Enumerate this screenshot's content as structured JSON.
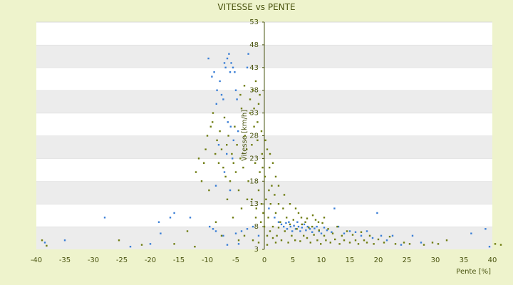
{
  "chart_data": {
    "type": "scatter",
    "title": "VITESSE vs PENTE",
    "xlabel": "Pente [%]",
    "ylabel": "Vitesse [km/h]",
    "xlim": [
      -40,
      40
    ],
    "ylim": [
      3,
      53
    ],
    "xticks": [
      -40,
      -35,
      -30,
      -25,
      -20,
      -15,
      -10,
      -5,
      0,
      5,
      10,
      15,
      20,
      25,
      30,
      35,
      40
    ],
    "yticks": [
      3,
      8,
      13,
      18,
      23,
      28,
      33,
      38,
      43,
      48,
      53
    ],
    "grid": "horizontal alternating bands",
    "legend": "none",
    "series": [
      {
        "color": "#3b7fd6",
        "points": [
          [
            -9.8,
            45
          ],
          [
            -9.2,
            41
          ],
          [
            -8.8,
            42
          ],
          [
            -8.3,
            38
          ],
          [
            -7.8,
            40
          ],
          [
            -7.5,
            37
          ],
          [
            -7.0,
            44
          ],
          [
            -6.8,
            43
          ],
          [
            -6.5,
            45
          ],
          [
            -6.2,
            46
          ],
          [
            -6.0,
            42
          ],
          [
            -5.8,
            44
          ],
          [
            -5.5,
            43
          ],
          [
            -5.2,
            42
          ],
          [
            -5.0,
            38
          ],
          [
            -4.8,
            36
          ],
          [
            -2.8,
            46
          ],
          [
            -3.0,
            43
          ],
          [
            -8.4,
            35
          ],
          [
            -7.2,
            36
          ],
          [
            -6.4,
            31
          ],
          [
            -5.9,
            30
          ],
          [
            -4.6,
            29
          ],
          [
            -5.4,
            27
          ],
          [
            -8.0,
            26
          ],
          [
            -6.6,
            24
          ],
          [
            -5.6,
            23
          ],
          [
            -7.0,
            20
          ],
          [
            -8.5,
            17
          ],
          [
            -6.0,
            16
          ],
          [
            -9.6,
            8
          ],
          [
            -9.0,
            7.5
          ],
          [
            -8.5,
            7
          ],
          [
            -7.2,
            6
          ],
          [
            -5.0,
            6.5
          ],
          [
            -4.0,
            7
          ],
          [
            -3.0,
            7.5
          ],
          [
            -2.0,
            8
          ],
          [
            -1.0,
            6
          ],
          [
            -6.5,
            4
          ],
          [
            -4.5,
            4.2
          ],
          [
            -28.0,
            10
          ],
          [
            -23.5,
            3.6
          ],
          [
            -20.0,
            4.2
          ],
          [
            -18.5,
            9
          ],
          [
            -18.2,
            6.5
          ],
          [
            -16.5,
            10
          ],
          [
            -15.8,
            11
          ],
          [
            -13.0,
            10
          ],
          [
            -35.0,
            5
          ],
          [
            -38.5,
            4.5
          ],
          [
            0.8,
            12
          ],
          [
            1.8,
            10
          ],
          [
            2.5,
            9
          ],
          [
            3.0,
            8.5
          ],
          [
            3.4,
            8
          ],
          [
            3.8,
            8.8
          ],
          [
            4.0,
            7.5
          ],
          [
            4.3,
            9
          ],
          [
            4.6,
            8
          ],
          [
            4.9,
            7
          ],
          [
            5.2,
            8.2
          ],
          [
            5.5,
            7.5
          ],
          [
            5.8,
            9
          ],
          [
            6.0,
            8
          ],
          [
            6.3,
            7
          ],
          [
            6.6,
            7.8
          ],
          [
            7.0,
            8.5
          ],
          [
            7.3,
            7.2
          ],
          [
            7.6,
            8
          ],
          [
            8.0,
            7.5
          ],
          [
            8.4,
            6.8
          ],
          [
            8.8,
            7.6
          ],
          [
            9.2,
            8
          ],
          [
            9.6,
            7
          ],
          [
            10.0,
            6.5
          ],
          [
            10.5,
            7.8
          ],
          [
            11.0,
            7.2
          ],
          [
            11.8,
            6.8
          ],
          [
            12.3,
            12
          ],
          [
            13.0,
            8
          ],
          [
            14.0,
            6.5
          ],
          [
            15.0,
            7
          ],
          [
            16.0,
            6.8
          ],
          [
            17.0,
            6
          ],
          [
            18.0,
            7
          ],
          [
            19.0,
            5.5
          ],
          [
            19.8,
            11
          ],
          [
            20.5,
            6
          ],
          [
            21.5,
            5
          ],
          [
            22.5,
            6
          ],
          [
            24.0,
            4
          ],
          [
            26.0,
            6
          ],
          [
            27.5,
            4.5
          ],
          [
            36.3,
            6.5
          ],
          [
            38.8,
            7.5
          ],
          [
            39.5,
            3.6
          ]
        ]
      },
      {
        "color": "#6f7d12",
        "points": [
          [
            -39.0,
            5
          ],
          [
            -38.2,
            3.8
          ],
          [
            -25.5,
            5
          ],
          [
            -21.5,
            4
          ],
          [
            -15.8,
            4.2
          ],
          [
            -13.5,
            7
          ],
          [
            -12.2,
            3.6
          ],
          [
            -12.0,
            20
          ],
          [
            -11.5,
            23
          ],
          [
            -11.0,
            18
          ],
          [
            -10.6,
            22
          ],
          [
            -10.3,
            25
          ],
          [
            -10.0,
            28
          ],
          [
            -9.7,
            16
          ],
          [
            -9.4,
            30
          ],
          [
            -9.1,
            31
          ],
          [
            -9.0,
            33
          ],
          [
            -8.6,
            24
          ],
          [
            -8.3,
            27
          ],
          [
            -8.0,
            22
          ],
          [
            -7.8,
            29
          ],
          [
            -7.5,
            25
          ],
          [
            -7.2,
            21
          ],
          [
            -7.0,
            32
          ],
          [
            -6.8,
            19
          ],
          [
            -6.6,
            26
          ],
          [
            -6.3,
            28
          ],
          [
            -6.0,
            18
          ],
          [
            -5.7,
            24
          ],
          [
            -5.4,
            22
          ],
          [
            -5.2,
            30
          ],
          [
            -5.0,
            20
          ],
          [
            -4.8,
            26
          ],
          [
            -4.5,
            16
          ],
          [
            -4.2,
            23
          ],
          [
            -4.0,
            34
          ],
          [
            -3.7,
            21
          ],
          [
            -3.4,
            28
          ],
          [
            -3.1,
            25
          ],
          [
            -2.8,
            18
          ],
          [
            -2.5,
            36
          ],
          [
            -2.2,
            14
          ],
          [
            -2.0,
            38
          ],
          [
            -1.8,
            30
          ],
          [
            -1.6,
            22
          ],
          [
            -1.4,
            12
          ],
          [
            -1.2,
            27
          ],
          [
            -1.0,
            16
          ],
          [
            -0.8,
            20
          ],
          [
            -0.6,
            9
          ],
          [
            -0.4,
            24
          ],
          [
            -0.2,
            11
          ],
          [
            0.1,
            19
          ],
          [
            0.3,
            14
          ],
          [
            0.5,
            25
          ],
          [
            0.7,
            10
          ],
          [
            0.9,
            21
          ],
          [
            1.1,
            13
          ],
          [
            1.3,
            17
          ],
          [
            1.5,
            8
          ],
          [
            1.8,
            15
          ],
          [
            2.0,
            11
          ],
          [
            2.2,
            6
          ],
          [
            2.5,
            13
          ],
          [
            2.8,
            9
          ],
          [
            3.0,
            5
          ],
          [
            3.3,
            12
          ],
          [
            3.6,
            7
          ],
          [
            3.9,
            10
          ],
          [
            4.2,
            4.5
          ],
          [
            4.5,
            8.5
          ],
          [
            4.8,
            6
          ],
          [
            5.1,
            9.5
          ],
          [
            5.4,
            5
          ],
          [
            5.7,
            7.5
          ],
          [
            6.0,
            11
          ],
          [
            6.3,
            4.8
          ],
          [
            6.6,
            8.5
          ],
          [
            6.9,
            6
          ],
          [
            7.2,
            9
          ],
          [
            7.5,
            5.5
          ],
          [
            7.8,
            7.8
          ],
          [
            8.1,
            4.5
          ],
          [
            8.4,
            8
          ],
          [
            8.7,
            6.2
          ],
          [
            9.0,
            9.5
          ],
          [
            9.3,
            5
          ],
          [
            9.6,
            7.2
          ],
          [
            9.9,
            4.2
          ],
          [
            10.2,
            8.8
          ],
          [
            10.5,
            6
          ],
          [
            10.8,
            5
          ],
          [
            11.2,
            7.5
          ],
          [
            11.6,
            4.5
          ],
          [
            12.0,
            6.5
          ],
          [
            12.4,
            5.2
          ],
          [
            12.8,
            8
          ],
          [
            13.2,
            4.2
          ],
          [
            13.6,
            6
          ],
          [
            14.0,
            5
          ],
          [
            14.5,
            7
          ],
          [
            15.0,
            4.5
          ],
          [
            15.5,
            6.2
          ],
          [
            16.0,
            5
          ],
          [
            16.5,
            4.2
          ],
          [
            17.0,
            6.8
          ],
          [
            17.5,
            5
          ],
          [
            18.0,
            4.5
          ],
          [
            18.5,
            6
          ],
          [
            19.2,
            4.2
          ],
          [
            20.0,
            5.2
          ],
          [
            21.0,
            4.5
          ],
          [
            22.0,
            5.8
          ],
          [
            23.0,
            4.2
          ],
          [
            24.5,
            4.5
          ],
          [
            25.5,
            4.2
          ],
          [
            28.0,
            4
          ],
          [
            29.5,
            4.5
          ],
          [
            30.5,
            4.2
          ],
          [
            32.0,
            5
          ],
          [
            40.5,
            4.2
          ],
          [
            41.5,
            4
          ],
          [
            -1.5,
            40
          ],
          [
            -1.0,
            35
          ],
          [
            -2.5,
            33
          ],
          [
            -0.5,
            29
          ],
          [
            0.2,
            27
          ],
          [
            -3.5,
            39
          ],
          [
            -4.2,
            37
          ],
          [
            -0.3,
            21
          ],
          [
            1.0,
            24
          ],
          [
            2.0,
            19
          ],
          [
            -3.0,
            14
          ],
          [
            -4.0,
            12
          ],
          [
            -5.5,
            10
          ],
          [
            -6.5,
            14
          ],
          [
            -7.5,
            6
          ],
          [
            -8.5,
            9
          ],
          [
            -2.0,
            5
          ],
          [
            -1.0,
            4.5
          ],
          [
            0.5,
            4
          ],
          [
            -3.5,
            6
          ],
          [
            -4.5,
            5
          ],
          [
            1.5,
            22
          ],
          [
            2.5,
            17
          ],
          [
            3.5,
            15
          ],
          [
            4.5,
            13
          ],
          [
            5.5,
            12
          ],
          [
            6.5,
            10
          ],
          [
            7.5,
            9.8
          ],
          [
            8.5,
            10.5
          ],
          [
            9.5,
            9
          ],
          [
            10.5,
            10
          ],
          [
            0.0,
            8
          ],
          [
            0.5,
            6
          ],
          [
            1.0,
            7
          ],
          [
            1.5,
            5.5
          ],
          [
            2.0,
            4.5
          ],
          [
            2.5,
            7.8
          ],
          [
            -0.5,
            13
          ],
          [
            -1.5,
            10
          ],
          [
            0.8,
            16
          ],
          [
            -2.2,
            26
          ],
          [
            -1.2,
            31
          ],
          [
            -0.8,
            37
          ],
          [
            -1.8,
            34
          ]
        ]
      }
    ]
  }
}
